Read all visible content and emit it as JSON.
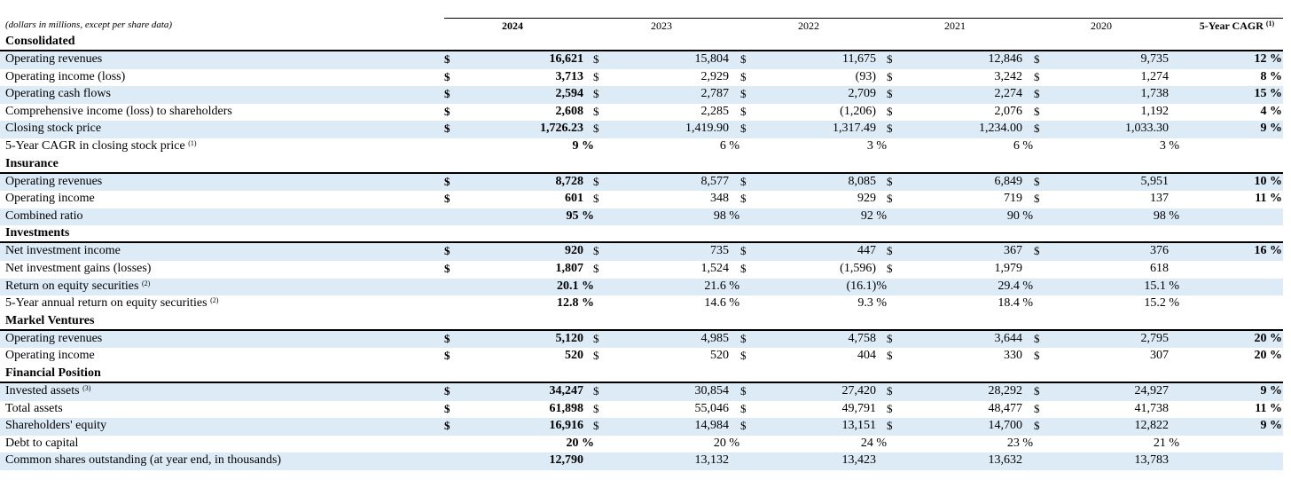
{
  "header": {
    "units_note": "(dollars in millions, except per share data)",
    "years": [
      "2024",
      "2023",
      "2022",
      "2021",
      "2020"
    ],
    "cagr_label": "5-Year CAGR",
    "cagr_footnote": "(1)"
  },
  "sections": [
    {
      "title": "Consolidated",
      "rows": [
        {
          "label": "Operating revenues",
          "footnote": "",
          "dollar": true,
          "values": [
            "16,621",
            "15,804",
            "11,675",
            "12,846",
            "9,735"
          ],
          "cagr": "12 %"
        },
        {
          "label": "Operating income (loss)",
          "footnote": "",
          "dollar": true,
          "values": [
            "3,713",
            "2,929",
            "(93)",
            "3,242",
            "1,274"
          ],
          "cagr": "8 %"
        },
        {
          "label": "Operating cash flows",
          "footnote": "",
          "dollar": true,
          "values": [
            "2,594",
            "2,787",
            "2,709",
            "2,274",
            "1,738"
          ],
          "cagr": "15 %"
        },
        {
          "label": "Comprehensive income (loss) to shareholders",
          "footnote": "",
          "dollar": true,
          "values": [
            "2,608",
            "2,285",
            "(1,206)",
            "2,076",
            "1,192"
          ],
          "cagr": "4 %"
        },
        {
          "label": "Closing stock price",
          "footnote": "",
          "dollar": true,
          "values": [
            "1,726.23",
            "1,419.90",
            "1,317.49",
            "1,234.00",
            "1,033.30"
          ],
          "cagr": "9 %"
        },
        {
          "label": "5-Year CAGR in closing stock price",
          "footnote": "(1)",
          "dollar": false,
          "values": [
            "9 %",
            "6 %",
            "3 %",
            "6 %",
            "3 %"
          ],
          "cagr": ""
        }
      ]
    },
    {
      "title": "Insurance",
      "rows": [
        {
          "label": "Operating revenues",
          "footnote": "",
          "dollar": true,
          "values": [
            "8,728",
            "8,577",
            "8,085",
            "6,849",
            "5,951"
          ],
          "cagr": "10 %"
        },
        {
          "label": "Operating income",
          "footnote": "",
          "dollar": true,
          "values": [
            "601",
            "348",
            "929",
            "719",
            "137"
          ],
          "cagr": "11 %"
        },
        {
          "label": "Combined ratio",
          "footnote": "",
          "dollar": false,
          "values": [
            "95 %",
            "98 %",
            "92 %",
            "90 %",
            "98 %"
          ],
          "cagr": ""
        }
      ]
    },
    {
      "title": "Investments",
      "rows": [
        {
          "label": "Net investment income",
          "footnote": "",
          "dollar": true,
          "values": [
            "920",
            "735",
            "447",
            "367",
            "376"
          ],
          "cagr": "16 %"
        },
        {
          "label": "Net investment gains (losses)",
          "footnote": "",
          "dollar": true,
          "dollar_last": false,
          "values": [
            "1,807",
            "1,524",
            "(1,596)",
            "1,979",
            "618"
          ],
          "cagr": ""
        },
        {
          "label": "Return on equity securities",
          "footnote": "(2)",
          "dollar": false,
          "values": [
            "20.1 %",
            "21.6 %",
            "(16.1)%",
            "29.4 %",
            "15.1 %"
          ],
          "cagr": ""
        },
        {
          "label": "5-Year annual return on equity securities",
          "footnote": "(2)",
          "dollar": false,
          "values": [
            "12.8 %",
            "14.6 %",
            "9.3 %",
            "18.4 %",
            "15.2 %"
          ],
          "cagr": ""
        }
      ]
    },
    {
      "title": "Markel Ventures",
      "rows": [
        {
          "label": "Operating revenues",
          "footnote": "",
          "dollar": true,
          "values": [
            "5,120",
            "4,985",
            "4,758",
            "3,644",
            "2,795"
          ],
          "cagr": "20 %"
        },
        {
          "label": "Operating income",
          "footnote": "",
          "dollar": true,
          "values": [
            "520",
            "520",
            "404",
            "330",
            "307"
          ],
          "cagr": "20 %"
        }
      ]
    },
    {
      "title": "Financial Position",
      "rows": [
        {
          "label": "Invested assets",
          "footnote": "(3)",
          "dollar": true,
          "values": [
            "34,247",
            "30,854",
            "27,420",
            "28,292",
            "24,927"
          ],
          "cagr": "9 %"
        },
        {
          "label": "Total assets",
          "footnote": "",
          "dollar": true,
          "values": [
            "61,898",
            "55,046",
            "49,791",
            "48,477",
            "41,738"
          ],
          "cagr": "11 %"
        },
        {
          "label": "Shareholders' equity",
          "footnote": "",
          "dollar": true,
          "values": [
            "16,916",
            "14,984",
            "13,151",
            "14,700",
            "12,822"
          ],
          "cagr": "9 %"
        },
        {
          "label": "Debt to capital",
          "footnote": "",
          "dollar": false,
          "values": [
            "20 %",
            "20 %",
            "24 %",
            "23 %",
            "21 %"
          ],
          "cagr": ""
        },
        {
          "label": "Common shares outstanding (at year end, in thousands)",
          "footnote": "",
          "dollar": false,
          "values": [
            "12,790",
            "13,132",
            "13,423",
            "13,632",
            "13,783"
          ],
          "cagr": ""
        }
      ]
    }
  ],
  "colors": {
    "row_shade": "#ddebf7",
    "rule": "#000000"
  }
}
